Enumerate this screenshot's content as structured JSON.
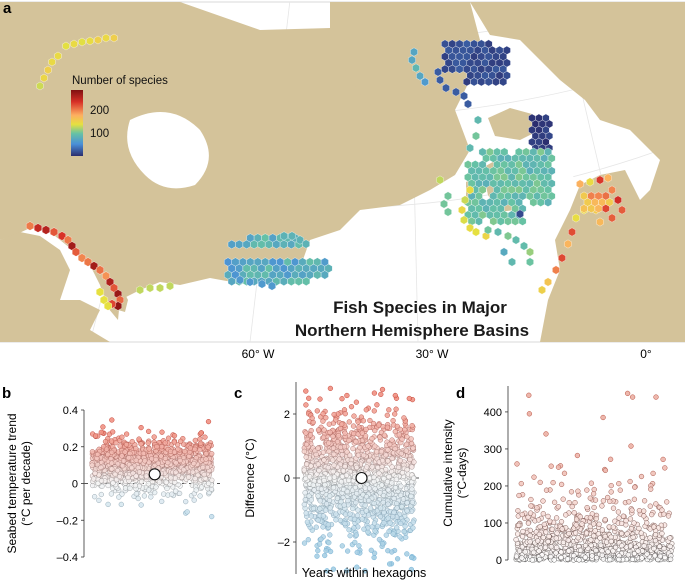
{
  "colors": {
    "ocean": "#ffffff",
    "land": "#d4c39a",
    "accent_red": "#b2182b",
    "accent_blue": "#4393c3",
    "mean_marker_fill": "#ffffff",
    "zero_line": "#555555"
  },
  "panel_a": {
    "label": "a",
    "legend_title": "Number of species",
    "legend_ticks": [
      "200",
      "100"
    ],
    "title_line1": "Fish Species in  Major",
    "title_line2": "Northern Hemisphere Basins",
    "longitude_labels": [
      "60° W",
      "30° W",
      "0°"
    ]
  },
  "panel_b": {
    "label": "b"
  },
  "panel_c": {
    "label": "c"
  },
  "panel_d": {
    "label": "d"
  },
  "shared_xlabel": "Years within hexagons",
  "chart_data": [
    {
      "id": "b",
      "type": "scatter",
      "title": "",
      "xlabel": "",
      "ylabel": "Seabed temperature trend (°C per decade)",
      "ylabel_lines": [
        "Seabed temperature trend",
        "(°C per decade)"
      ],
      "ylim": [
        -0.4,
        0.4
      ],
      "yticks": [
        0.4,
        0.2,
        0,
        -0.2,
        -0.4
      ],
      "ytick_labels": [
        "0.4",
        "0.2",
        "0",
        "–0.2",
        "–0.4"
      ],
      "zero_line": true,
      "mean": 0.05,
      "point_count": 1100,
      "distribution": {
        "center": 0.1,
        "spread": 0.075,
        "min": -0.18,
        "max": 0.37
      }
    },
    {
      "id": "c",
      "type": "scatter",
      "title": "",
      "xlabel": "",
      "ylabel": "Difference (°C)",
      "ylabel_lines": [
        "Difference (°C)"
      ],
      "ylim": [
        -3,
        3
      ],
      "yticks": [
        2,
        0,
        -2
      ],
      "ytick_labels": [
        "2",
        "0",
        "–2"
      ],
      "zero_line": true,
      "mean": 0.0,
      "point_count": 1500,
      "distribution": {
        "center": 0.0,
        "spread": 0.95,
        "min": -2.9,
        "max": 2.8
      }
    },
    {
      "id": "d",
      "type": "scatter",
      "title": "",
      "xlabel": "",
      "ylabel": "Cumulative intensity (°C-days)",
      "ylabel_lines": [
        "Cumulative intensity",
        "(°C-days)"
      ],
      "ylim": [
        0,
        470
      ],
      "yticks": [
        400,
        300,
        200,
        100,
        0
      ],
      "ytick_labels": [
        "400",
        "300",
        "200",
        "100",
        "0"
      ],
      "zero_line": false,
      "point_count": 900,
      "distribution": {
        "scale": 55,
        "min": 0,
        "max": 455
      },
      "notable_high_values": [
        450,
        445,
        440,
        395,
        385,
        440
      ]
    }
  ]
}
